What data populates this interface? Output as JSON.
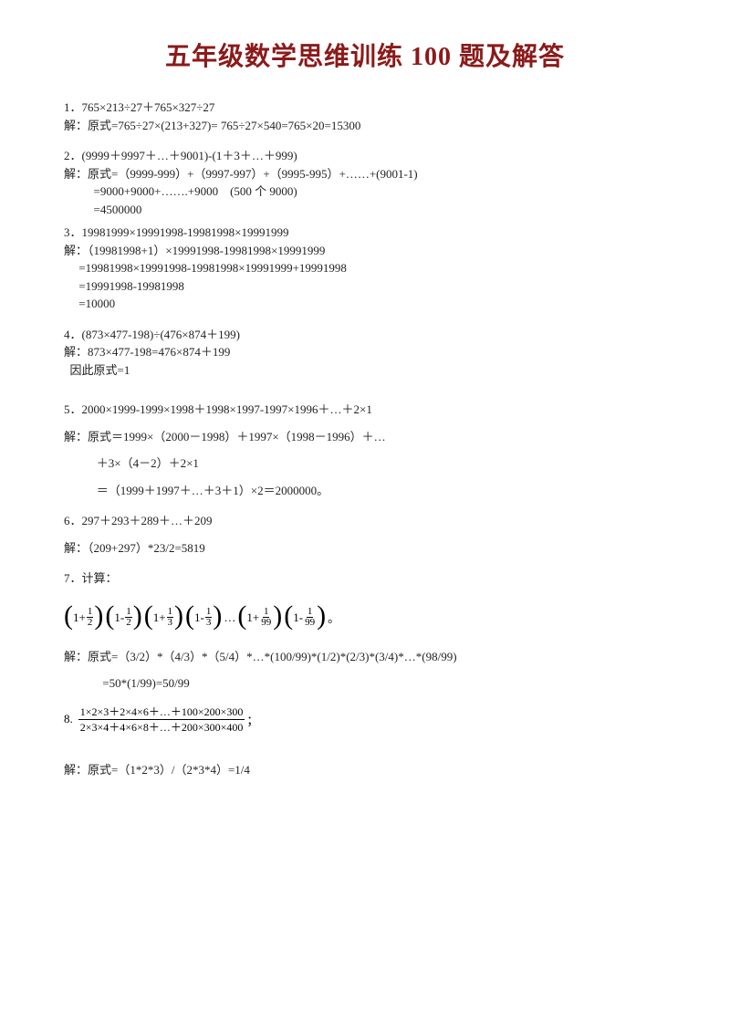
{
  "title": "五年级数学思维训练 100 题及解答",
  "p1": {
    "q": "1．765×213÷27＋765×327÷27",
    "a": "解：原式=765÷27×(213+327)= 765÷27×540=765×20=15300"
  },
  "p2": {
    "q": "2．(9999＋9997＋…＋9001)-(1＋3＋…＋999)",
    "a1": "解：原式=（9999-999）+（9997-997）+（9995-995）+……+(9001-1)",
    "a2": "          =9000+9000+…….+9000    (500 个 9000)",
    "a3": "          =4500000"
  },
  "p3": {
    "q": "3．19981999×19991998-19981998×19991999",
    "a1": "解：（19981998+1）×19991998-19981998×19991999",
    "a2": "     =19981998×19991998-19981998×19991999+19991998",
    "a3": "     =19991998-19981998",
    "a4": "     =10000"
  },
  "p4": {
    "q": "4．(873×477-198)÷(476×874＋199)",
    "a1": "解：873×477-198=476×874＋199",
    "a2": "  因此原式=1"
  },
  "p5": {
    "q": "5．2000×1999-1999×1998＋1998×1997-1997×1996＋…＋2×1",
    "a1": "解：原式＝1999×（2000－1998）＋1997×（1998－1996）＋…",
    "a2": "           ＋3×（4－2）＋2×1",
    "a3": "           ＝（1999＋1997＋…＋3＋1）×2＝2000000。"
  },
  "p6": {
    "q": "6．297＋293＋289＋…＋209",
    "a": "解：（209+297）*23/2=5819"
  },
  "p7": {
    "q": "7．计算：",
    "terms": [
      {
        "op": "1+",
        "n": "1",
        "d": "2"
      },
      {
        "op": "1-",
        "n": "1",
        "d": "2"
      },
      {
        "op": "1+",
        "n": "1",
        "d": "3"
      },
      {
        "op": "1-",
        "n": "1",
        "d": "3"
      }
    ],
    "dots": "…",
    "terms2": [
      {
        "op": "1+",
        "n": "1",
        "d": "99"
      },
      {
        "op": "1-",
        "n": "1",
        "d": "99"
      }
    ],
    "tail": "。",
    "a1": "解：原式=（3/2）*（4/3）*（5/4）*…*(100/99)*(1/2)*(2/3)*(3/4)*…*(98/99)",
    "a2": "             =50*(1/99)=50/99"
  },
  "p8": {
    "label": "8.",
    "top": "1×2×3＋2×4×6＋…＋100×200×300",
    "bot": "2×3×4＋4×6×8＋…＋200×300×400",
    "tail": "；",
    "a": "解：原式=（1*2*3）/（2*3*4）=1/4"
  },
  "colors": {
    "title": "#8b1a1a",
    "text": "#222222",
    "bg": "#ffffff"
  },
  "fontsizes": {
    "title": 28,
    "body": 13
  }
}
